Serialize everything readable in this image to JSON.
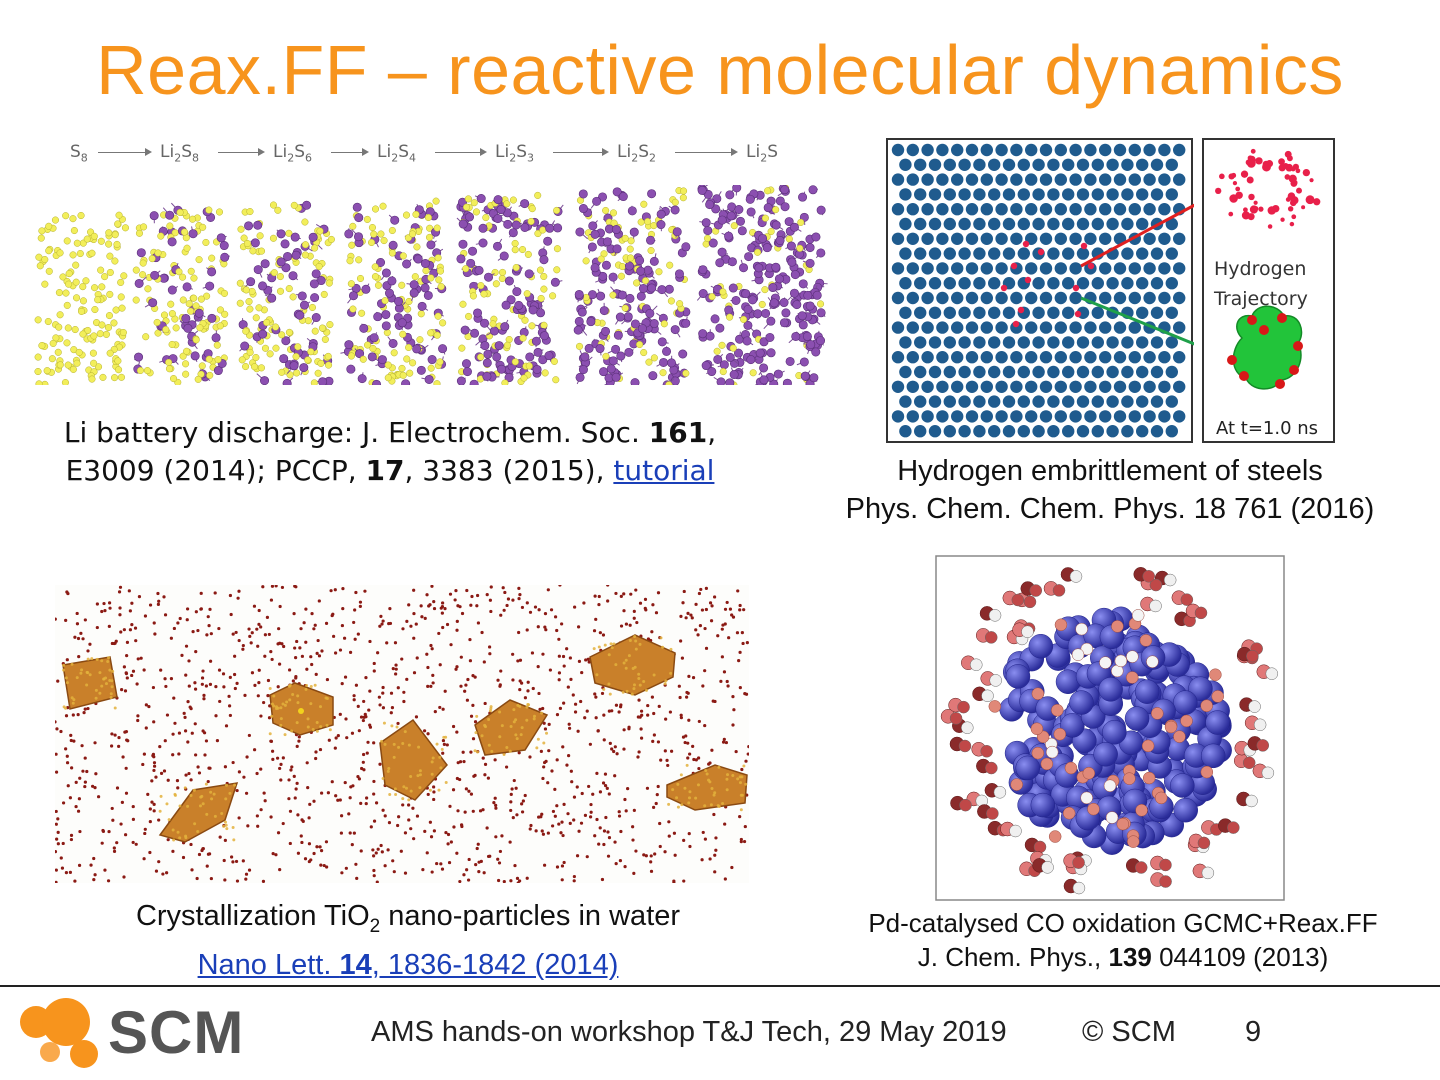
{
  "slide": {
    "title": "Reax.FF – reactive molecular dynamics",
    "colors": {
      "title": "#f7941d",
      "link": "#1a3fb8",
      "li_atom": "#8b4fb0",
      "s_atom": "#f2ee5a"
    }
  },
  "battery": {
    "sequence": [
      {
        "base": "S",
        "sub": "8",
        "rest": "",
        "rsub": ""
      },
      {
        "base": "Li",
        "sub": "2",
        "rest": "S",
        "rsub": "8"
      },
      {
        "base": "Li",
        "sub": "2",
        "rest": "S",
        "rsub": "6"
      },
      {
        "base": "Li",
        "sub": "2",
        "rest": "S",
        "rsub": "4"
      },
      {
        "base": "Li",
        "sub": "2",
        "rest": "S",
        "rsub": "3"
      },
      {
        "base": "Li",
        "sub": "2",
        "rest": "S",
        "rsub": "2"
      },
      {
        "base": "Li",
        "sub": "2",
        "rest": "S",
        "rsub": ""
      }
    ],
    "caption_line1": "Li battery discharge:  J. Electrochem. Soc. ",
    "caption_vol1": "161",
    "caption_line1_end": ",",
    "caption_line2_start": "E3009 (2014); PCCP, ",
    "caption_vol2": "17",
    "caption_line2_mid": ", 3383 (2015), ",
    "caption_link": "tutorial"
  },
  "hydrogen": {
    "label_line1": "Hydrogen",
    "label_line2": "Trajectory",
    "time_label": "At t=1.0 ns",
    "caption_line1": "Hydrogen embrittlement of steels",
    "caption_line2": "Phys. Chem. Chem. Phys. 18 761 (2016)"
  },
  "tio2": {
    "caption_pre": "Crystallization Ti",
    "caption_o": "O",
    "caption_sub": "2",
    "caption_post": " nano-particles in water",
    "link_pre": "Nano Lett. ",
    "link_vol": "14",
    "link_post": ", 1836-1842 (2014)"
  },
  "pd": {
    "caption_line1": "Pd-catalysed CO oxidation GCMC+Reax.FF",
    "caption_line2_pre": "J. Chem. Phys., ",
    "caption_vol": "139",
    "caption_line2_post": "  044109 (2013)"
  },
  "footer": {
    "logo_text": "SCM",
    "workshop": "AMS hands-on workshop T&J Tech, 29 May 2019",
    "copyright": "© SCM",
    "page_number": "9"
  }
}
